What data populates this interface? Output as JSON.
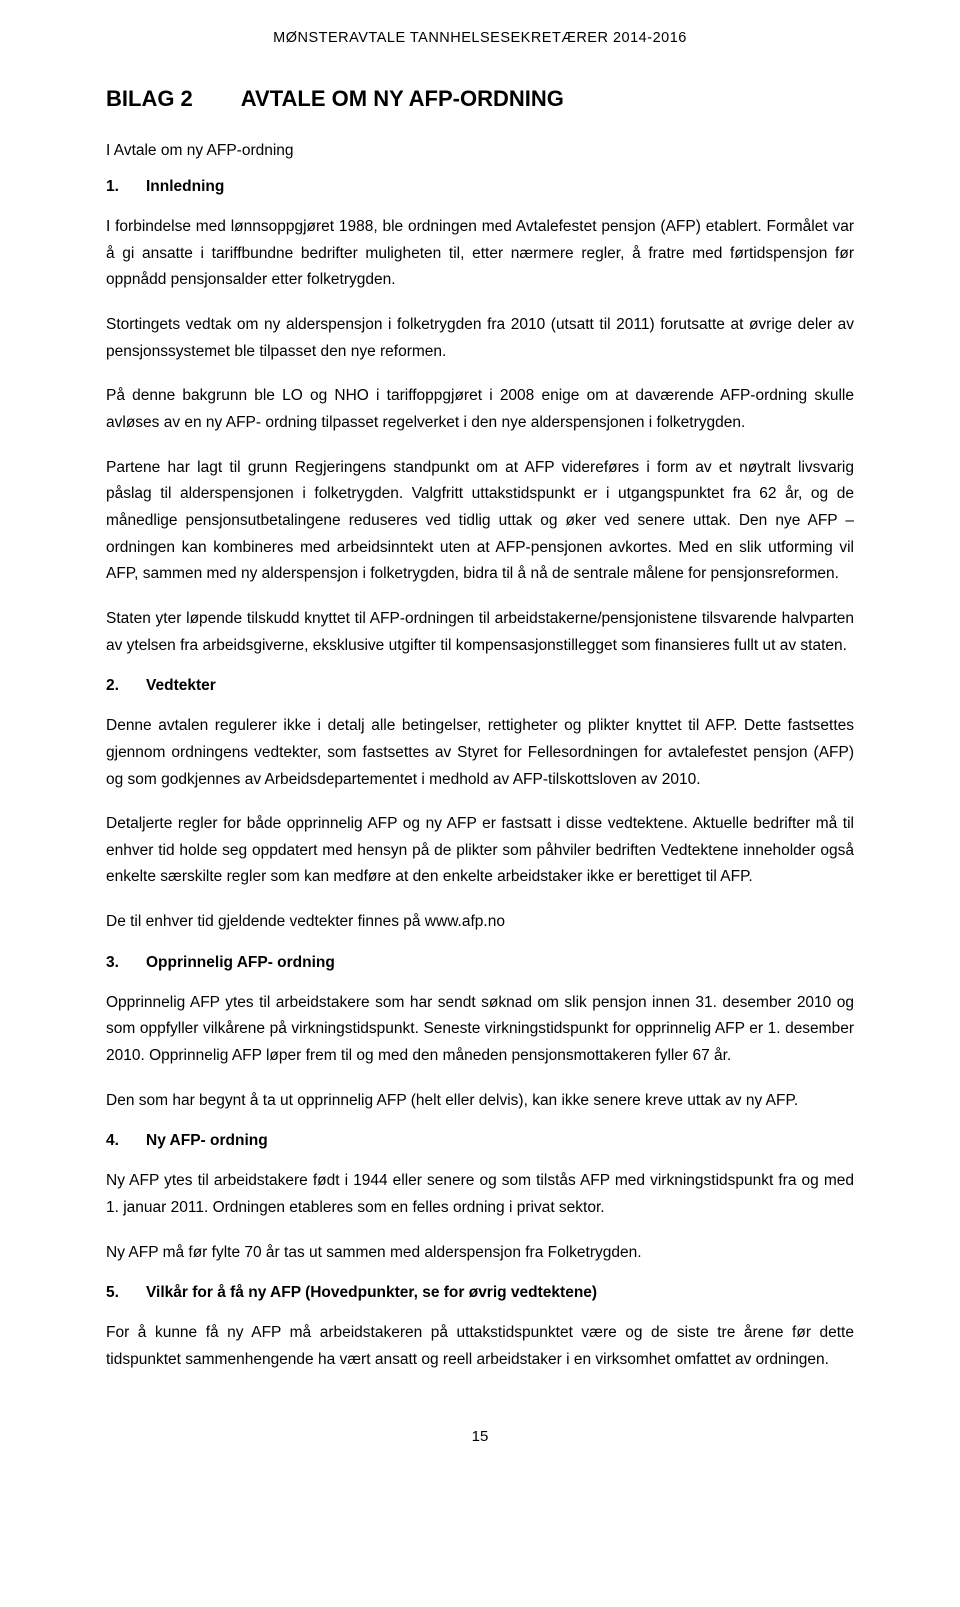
{
  "header": "MØNSTERAVTALE TANNHELSESEKRETÆRER 2014-2016",
  "bilag": {
    "title": "BILAG 2",
    "subject": "AVTALE OM NY AFP-ORDNING"
  },
  "intro": "I   Avtale om ny AFP-ordning",
  "s1": {
    "num": "1.",
    "title": "Innledning",
    "p1": "I forbindelse med lønnsoppgjøret 1988, ble ordningen med Avtalefestet pensjon (AFP) etablert. Formålet var å gi ansatte i tariffbundne bedrifter muligheten til, etter nærmere regler, å fratre med førtidspensjon før oppnådd pensjonsalder etter folketrygden.",
    "p2": "Stortingets vedtak om ny alderspensjon i folketrygden fra 2010 (utsatt til 2011) forutsatte at øvrige deler av pensjonssystemet ble tilpasset den nye reformen.",
    "p3": "På denne bakgrunn ble LO og NHO i tariffoppgjøret i 2008 enige om at daværende AFP-ordning skulle avløses av en ny AFP- ordning tilpasset regelverket i den nye alderspensjonen i folketrygden.",
    "p4": "Partene har lagt til grunn Regjeringens standpunkt om at AFP videreføres i form av et nøytralt livsvarig påslag til alderspensjonen i folketrygden. Valgfritt uttakstidspunkt er i utgangspunktet fra 62 år, og de månedlige pensjonsutbetalingene reduseres ved tidlig uttak og øker ved senere uttak. Den nye AFP – ordningen kan kombineres med arbeidsinntekt uten at AFP-pensjonen avkortes. Med en slik utforming vil AFP, sammen med ny alderspensjon i folketrygden, bidra til å nå de sentrale målene for pensjonsreformen.",
    "p5": "Staten yter løpende tilskudd knyttet til AFP-ordningen til arbeidstakerne/pensjonistene tilsvarende halvparten av ytelsen fra arbeidsgiverne, eksklusive utgifter til kompensasjonstillegget som finansieres fullt ut av staten."
  },
  "s2": {
    "num": "2.",
    "title": "Vedtekter",
    "p1": "Denne avtalen regulerer ikke i detalj alle betingelser, rettigheter og plikter knyttet til AFP. Dette fastsettes gjennom ordningens vedtekter, som fastsettes av Styret for Fellesordningen for avtalefestet pensjon (AFP) og som godkjennes av Arbeidsdepartementet i medhold av AFP-tilskottsloven av 2010.",
    "p2": "Detaljerte regler for både opprinnelig AFP og ny AFP er fastsatt i disse vedtektene. Aktuelle bedrifter må til enhver tid holde seg oppdatert med hensyn på de plikter som påhviler bedriften Vedtektene inneholder også enkelte særskilte regler som kan medføre at den enkelte arbeidstaker ikke er berettiget til AFP.",
    "p3": "De til enhver tid gjeldende vedtekter finnes på www.afp.no"
  },
  "s3": {
    "num": "3.",
    "title": "Opprinnelig AFP- ordning",
    "p1": "Opprinnelig AFP ytes til arbeidstakere som har sendt søknad om slik pensjon innen 31. desember 2010 og som oppfyller vilkårene på virkningstidspunkt. Seneste virkningstidspunkt for opprinnelig AFP er 1. desember 2010. Opprinnelig AFP løper frem til og med den måneden pensjonsmottakeren fyller 67 år.",
    "p2": "Den som har begynt å ta ut opprinnelig AFP (helt eller delvis), kan ikke senere kreve uttak av ny AFP."
  },
  "s4": {
    "num": "4.",
    "title": "Ny AFP- ordning",
    "p1": "Ny AFP ytes til arbeidstakere født i 1944 eller senere og som tilstås AFP med virkningstidspunkt fra og med 1. januar 2011. Ordningen etableres som en felles ordning i privat sektor.",
    "p2": "Ny AFP må før fylte 70 år tas ut sammen med alderspensjon fra Folketrygden."
  },
  "s5": {
    "num": "5.",
    "title": "Vilkår for å få ny AFP (Hovedpunkter, se for øvrig vedtektene)",
    "p1": "For å kunne få ny AFP må arbeidstakeren på uttakstidspunktet være og de siste tre årene før dette tidspunktet sammenhengende ha vært ansatt og reell arbeidstaker i en virksomhet omfattet av ordningen."
  },
  "pageNumber": "15"
}
